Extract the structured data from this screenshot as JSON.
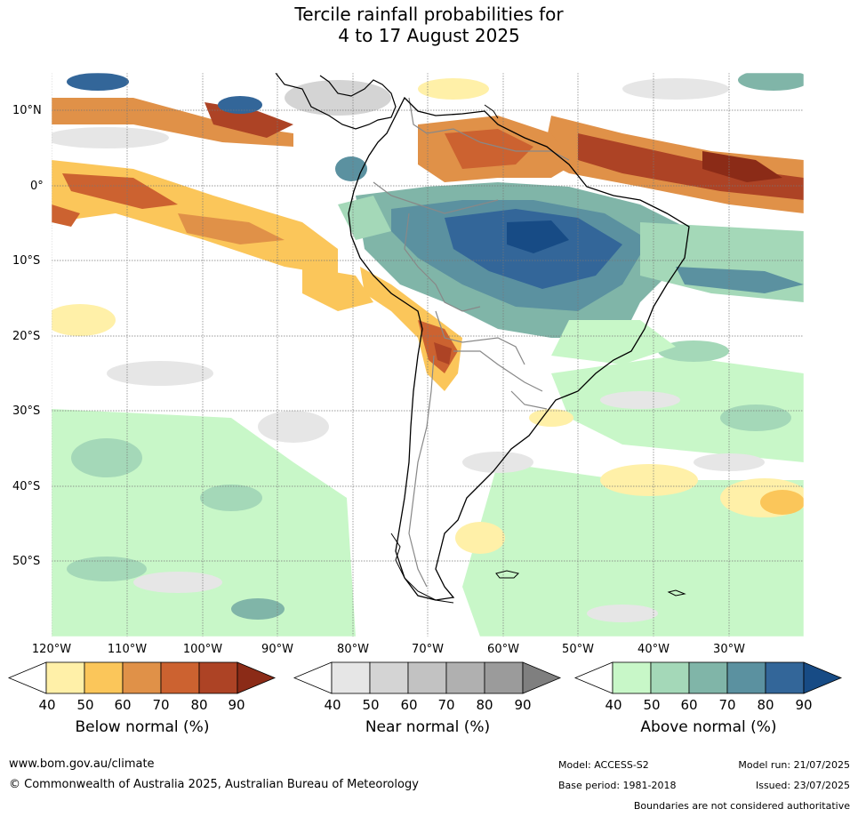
{
  "title": {
    "line1": "Tercile rainfall probabilities for",
    "line2": "4 to 17 August 2025"
  },
  "map": {
    "lat_labels": [
      "10°N",
      "0°",
      "10°S",
      "20°S",
      "30°S",
      "40°S",
      "50°S"
    ],
    "lon_labels": [
      "120°W",
      "110°W",
      "100°W",
      "90°W",
      "80°W",
      "70°W",
      "60°W",
      "50°W",
      "40°W",
      "30°W"
    ],
    "boundaries_note": "Boundaries are not considered authoritative"
  },
  "colorbars": [
    {
      "title": "Below normal (%)",
      "ticks": [
        "40",
        "50",
        "60",
        "70",
        "80",
        "90"
      ],
      "colors": [
        "#fff0a8",
        "#fbc65a",
        "#e09148",
        "#cc6230",
        "#ad4325",
        "#8b2b17"
      ]
    },
    {
      "title": "Near normal (%)",
      "ticks": [
        "40",
        "50",
        "60",
        "70",
        "80",
        "90"
      ],
      "colors": [
        "#e6e6e6",
        "#d4d4d4",
        "#c2c2c2",
        "#b0b0b0",
        "#9b9b9b",
        "#7f7f7f"
      ]
    },
    {
      "title": "Above normal (%)",
      "ticks": [
        "40",
        "50",
        "60",
        "70",
        "80",
        "90"
      ],
      "colors": [
        "#c8f7c8",
        "#a4d8b8",
        "#80b5a8",
        "#5b91a0",
        "#336699",
        "#174b85"
      ]
    }
  ],
  "footer": {
    "url": "www.bom.gov.au/climate",
    "copyright": "© Commonwealth of Australia 2025, Australian Bureau of Meteorology",
    "model": "Model: ACCESS-S2",
    "base_period": "Base period: 1981-2018",
    "model_run": "Model run: 21/07/2025",
    "issued": "Issued: 23/07/2025",
    "boundaries": "Boundaries are not considered authoritative"
  }
}
